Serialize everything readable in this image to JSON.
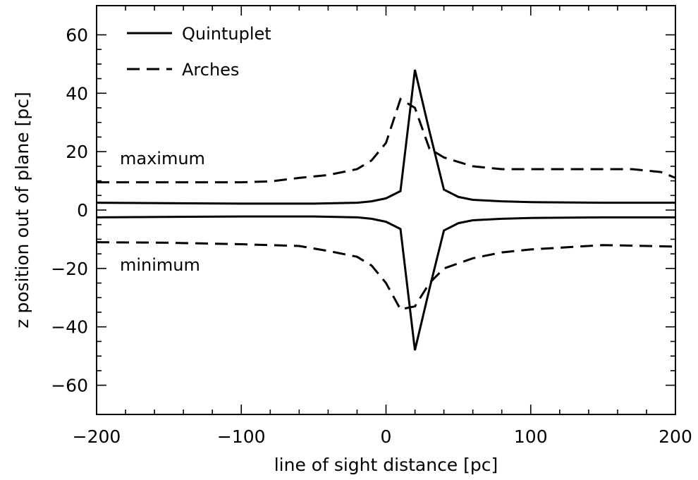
{
  "chart_data": {
    "type": "line",
    "title": "",
    "xlabel": "line of sight distance [pc]",
    "ylabel": "z position out of plane [pc]",
    "xlim": [
      -200,
      200
    ],
    "ylim": [
      -70,
      70
    ],
    "x_ticks": [
      -200,
      -100,
      0,
      100,
      200
    ],
    "x_tick_labels": [
      "−200",
      "−100",
      "0",
      "100",
      "200"
    ],
    "y_ticks": [
      -60,
      -40,
      -20,
      0,
      20,
      40,
      60
    ],
    "y_tick_labels": [
      "−60",
      "−40",
      "−20",
      "0",
      "20",
      "40",
      "60"
    ],
    "grid": false,
    "legend_position": "top-left",
    "series": [
      {
        "name": "Quintuplet",
        "style": "solid",
        "group": "maximum",
        "x": [
          -200,
          -100,
          -50,
          -20,
          -10,
          0,
          10,
          20,
          30,
          40,
          50,
          60,
          80,
          100,
          150,
          200
        ],
        "y": [
          2.5,
          2.2,
          2.2,
          2.5,
          3,
          4,
          6.5,
          48,
          27,
          7,
          4.5,
          3.5,
          3,
          2.7,
          2.5,
          2.5
        ]
      },
      {
        "name": "",
        "style": "solid",
        "group": "minimum",
        "x": [
          -200,
          -100,
          -50,
          -20,
          -10,
          0,
          10,
          20,
          30,
          40,
          50,
          60,
          80,
          100,
          150,
          200
        ],
        "y": [
          -2.5,
          -2.2,
          -2.2,
          -2.5,
          -3,
          -4,
          -6.5,
          -48,
          -27,
          -7,
          -4.5,
          -3.5,
          -3,
          -2.7,
          -2.5,
          -2.5
        ]
      },
      {
        "name": "Arches",
        "style": "dashed",
        "group": "maximum",
        "x": [
          -200,
          -150,
          -100,
          -80,
          -60,
          -40,
          -20,
          -10,
          0,
          10,
          20,
          30,
          40,
          60,
          80,
          100,
          150,
          170,
          190,
          200
        ],
        "y": [
          9.5,
          9.5,
          9.5,
          9.8,
          11,
          12,
          14,
          17,
          23,
          38,
          35,
          21,
          18,
          15,
          14,
          14,
          14,
          14,
          13,
          11
        ]
      },
      {
        "name": "",
        "style": "dashed",
        "group": "minimum",
        "x": [
          -200,
          -150,
          -100,
          -60,
          -40,
          -20,
          -10,
          0,
          10,
          20,
          30,
          40,
          60,
          80,
          100,
          150,
          200
        ],
        "y": [
          -11,
          -11.2,
          -11.7,
          -12.3,
          -14,
          -16,
          -19,
          -25,
          -34,
          -33,
          -25,
          -20,
          -16.5,
          -14.5,
          -13.5,
          -12,
          -12.5
        ]
      }
    ],
    "annotations": [
      "maximum",
      "minimum"
    ]
  }
}
